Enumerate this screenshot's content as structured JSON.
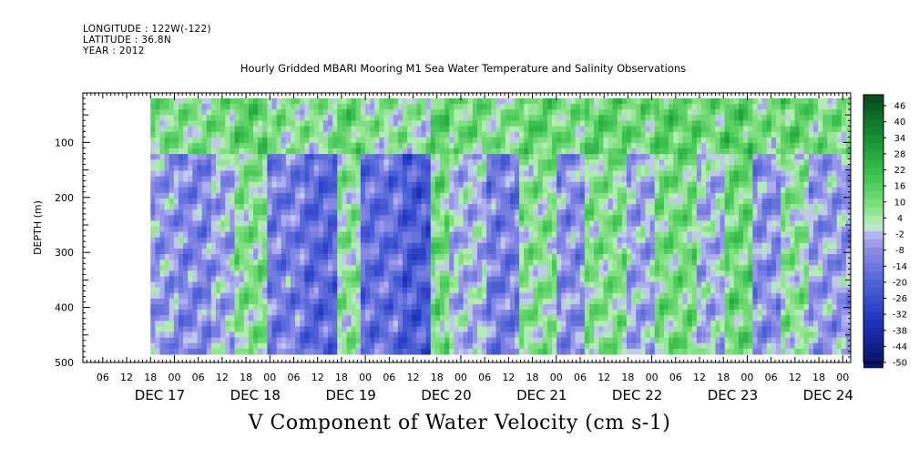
{
  "header": {
    "longitude": "LONGITUDE : 122W(-122)",
    "latitude": "LATITUDE : 36.8N",
    "year": "YEAR : 2012"
  },
  "chart_data": {
    "type": "heatmap",
    "title": "Hourly Gridded MBARI Mooring M1 Sea Water Temperature and Salinity Observations",
    "xlabel": "V Component of Water Velocity (cm s-1)",
    "ylabel": "DEPTH (m)",
    "xlim": [
      "DEC 16 01:00",
      "DEC 24 02:00"
    ],
    "ylim": [
      500,
      10
    ],
    "y_ticks": [
      100,
      200,
      300,
      400,
      500
    ],
    "x_hour_ticks": [
      "06",
      "12",
      "18",
      "00",
      "06",
      "12",
      "18",
      "00",
      "06",
      "12",
      "18",
      "00",
      "06",
      "12",
      "18",
      "00",
      "06",
      "12",
      "18",
      "00",
      "06",
      "12",
      "18",
      "00",
      "06",
      "12",
      "18",
      "00",
      "06",
      "12",
      "18",
      "00"
    ],
    "x_day_labels": [
      "DEC 17",
      "DEC 18",
      "DEC 19",
      "DEC 20",
      "DEC 21",
      "DEC 22",
      "DEC 23",
      "DEC 24"
    ],
    "data_depth_range": [
      20,
      485
    ],
    "data_start": "DEC 16 18:00",
    "colorbar": {
      "labels": [
        46,
        40,
        34,
        28,
        22,
        16,
        10,
        4,
        -2,
        -8,
        -14,
        -20,
        -26,
        -32,
        -38,
        -44,
        -50
      ],
      "min": -50,
      "max": 50,
      "step": 3
    },
    "bands": [
      {
        "start": 0.0,
        "end": 0.04,
        "value": -8
      },
      {
        "start": 0.04,
        "end": 0.09,
        "value": -12
      },
      {
        "start": 0.09,
        "end": 0.12,
        "value": -6
      },
      {
        "start": 0.12,
        "end": 0.17,
        "value": 6
      },
      {
        "start": 0.17,
        "end": 0.22,
        "value": -14
      },
      {
        "start": 0.22,
        "end": 0.27,
        "value": -20
      },
      {
        "start": 0.27,
        "end": 0.3,
        "value": 4
      },
      {
        "start": 0.3,
        "end": 0.36,
        "value": -18
      },
      {
        "start": 0.36,
        "end": 0.4,
        "value": -24
      },
      {
        "start": 0.4,
        "end": 0.43,
        "value": 8
      },
      {
        "start": 0.43,
        "end": 0.48,
        "value": -4
      },
      {
        "start": 0.48,
        "end": 0.53,
        "value": -14
      },
      {
        "start": 0.53,
        "end": 0.58,
        "value": 5
      },
      {
        "start": 0.58,
        "end": 0.62,
        "value": -10
      },
      {
        "start": 0.62,
        "end": 0.68,
        "value": 6
      },
      {
        "start": 0.68,
        "end": 0.72,
        "value": -6
      },
      {
        "start": 0.72,
        "end": 0.78,
        "value": 8
      },
      {
        "start": 0.78,
        "end": 0.82,
        "value": -4
      },
      {
        "start": 0.82,
        "end": 0.86,
        "value": 10
      },
      {
        "start": 0.86,
        "end": 0.9,
        "value": -10
      },
      {
        "start": 0.9,
        "end": 0.94,
        "value": 4
      },
      {
        "start": 0.94,
        "end": 1.0,
        "value": -8
      }
    ],
    "surface_layer": {
      "depth_max": 120,
      "value": 16
    }
  },
  "colors": {
    "frame": "#000000",
    "colorbar_low": "#0a1a6e",
    "colorbar_mid_low": "#8c8ce6",
    "colorbar_mid_high": "#b4eeb4",
    "colorbar_high": "#0a5a20"
  }
}
